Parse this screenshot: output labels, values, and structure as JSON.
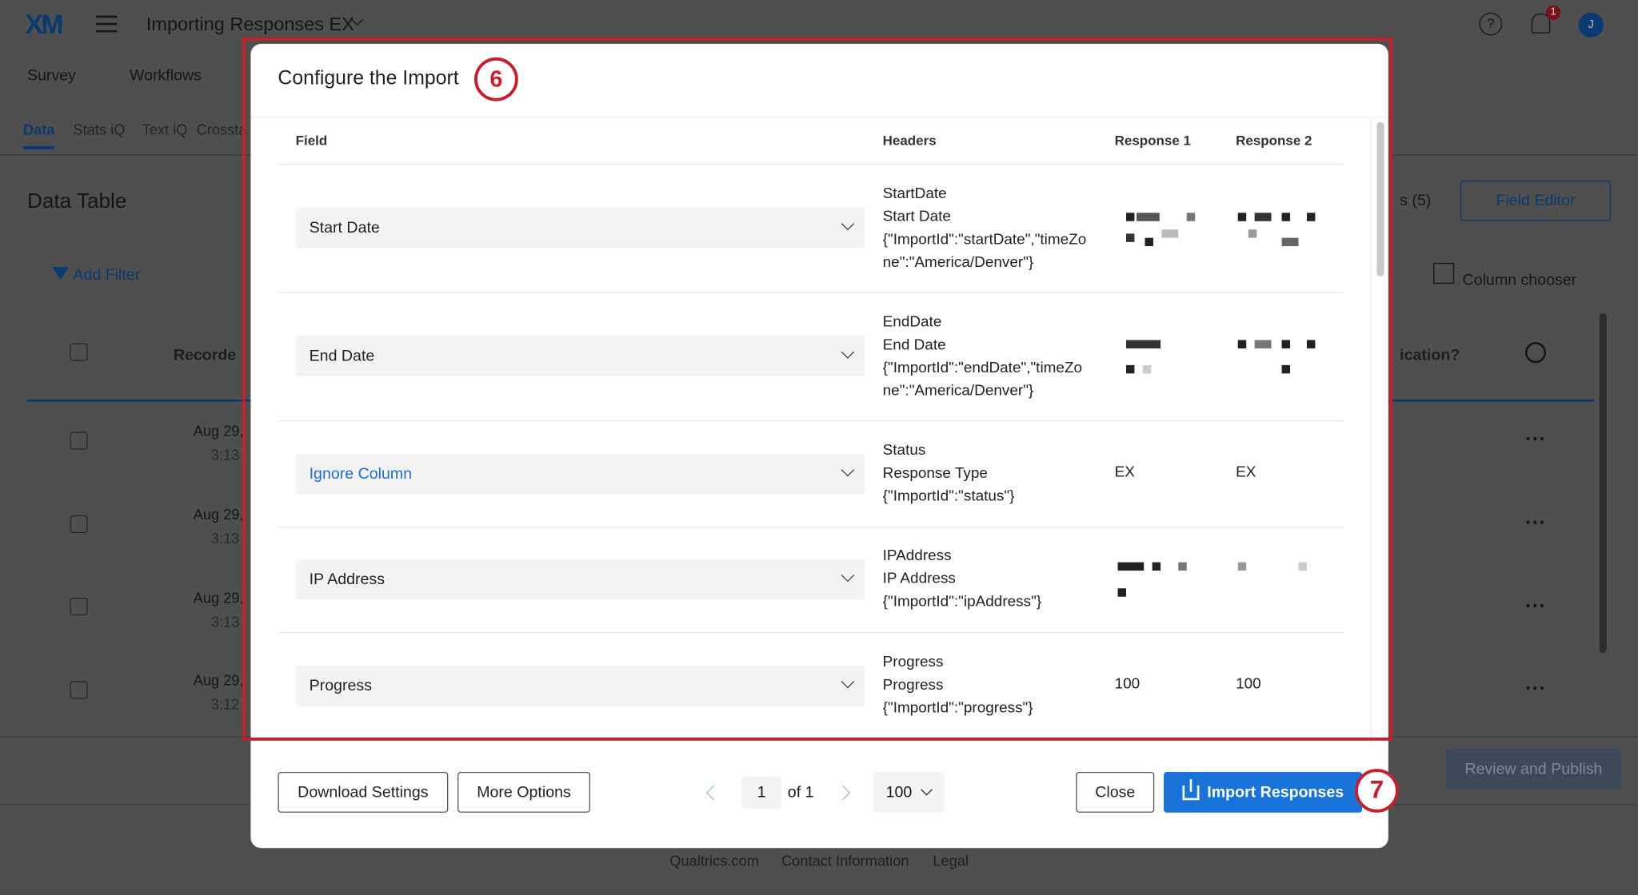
{
  "app": {
    "logo": "XM",
    "survey_title": "Importing Responses EX",
    "nav": [
      "Survey",
      "Workflows"
    ],
    "tabs": [
      "Data",
      "Stats iQ",
      "Text iQ",
      "Crossta"
    ],
    "page_title": "Data Table",
    "add_filter": "Add Filter",
    "columns_dropdown": "s (5)",
    "field_editor": "Field Editor",
    "column_chooser": "Column chooser",
    "col_recorded": "Recorde",
    "col_right": "ication?",
    "rows": [
      {
        "date": "Aug 29,",
        "time": "3:13"
      },
      {
        "date": "Aug 29,",
        "time": "3:13"
      },
      {
        "date": "Aug 29,",
        "time": "3:13"
      },
      {
        "date": "Aug 29,",
        "time": "3:12"
      }
    ],
    "review_publish": "Review and Publish",
    "footer_links": [
      "Qualtrics.com",
      "Contact Information",
      "Legal"
    ],
    "notification_count": "1",
    "avatar_initial": "J"
  },
  "modal": {
    "title": "Configure the Import",
    "step_badge": "6",
    "columns": {
      "field": "Field",
      "headers": "Headers",
      "response1": "Response 1",
      "response2": "Response 2"
    },
    "rows": [
      {
        "field": "Start Date",
        "headers": [
          "StartDate",
          "Start Date",
          "{\"ImportId\":\"startDate\",\"timeZo",
          "ne\":\"America/Denver\"}"
        ],
        "r1": "",
        "r2": ""
      },
      {
        "field": "End Date",
        "headers": [
          "EndDate",
          "End Date",
          "{\"ImportId\":\"endDate\",\"timeZo",
          "ne\":\"America/Denver\"}"
        ],
        "r1": "",
        "r2": ""
      },
      {
        "field": "Ignore Column",
        "headers": [
          "Status",
          "Response Type",
          "{\"ImportId\":\"status\"}"
        ],
        "r1": "EX",
        "r2": "EX"
      },
      {
        "field": "IP Address",
        "headers": [
          "IPAddress",
          "IP Address",
          "{\"ImportId\":\"ipAddress\"}"
        ],
        "r1": "",
        "r2": ""
      },
      {
        "field": "Progress",
        "headers": [
          "Progress",
          "Progress",
          "{\"ImportId\":\"progress\"}"
        ],
        "r1": "100",
        "r2": "100"
      }
    ],
    "footer": {
      "download_settings": "Download Settings",
      "more_options": "More Options",
      "page_current": "1",
      "page_of": "of 1",
      "per_page": "100",
      "close": "Close",
      "import": "Import Responses",
      "step_badge": "7"
    }
  },
  "colors": {
    "accent": "#1a73d9",
    "annotation": "#c5202e",
    "link": "#1a6fd1"
  }
}
